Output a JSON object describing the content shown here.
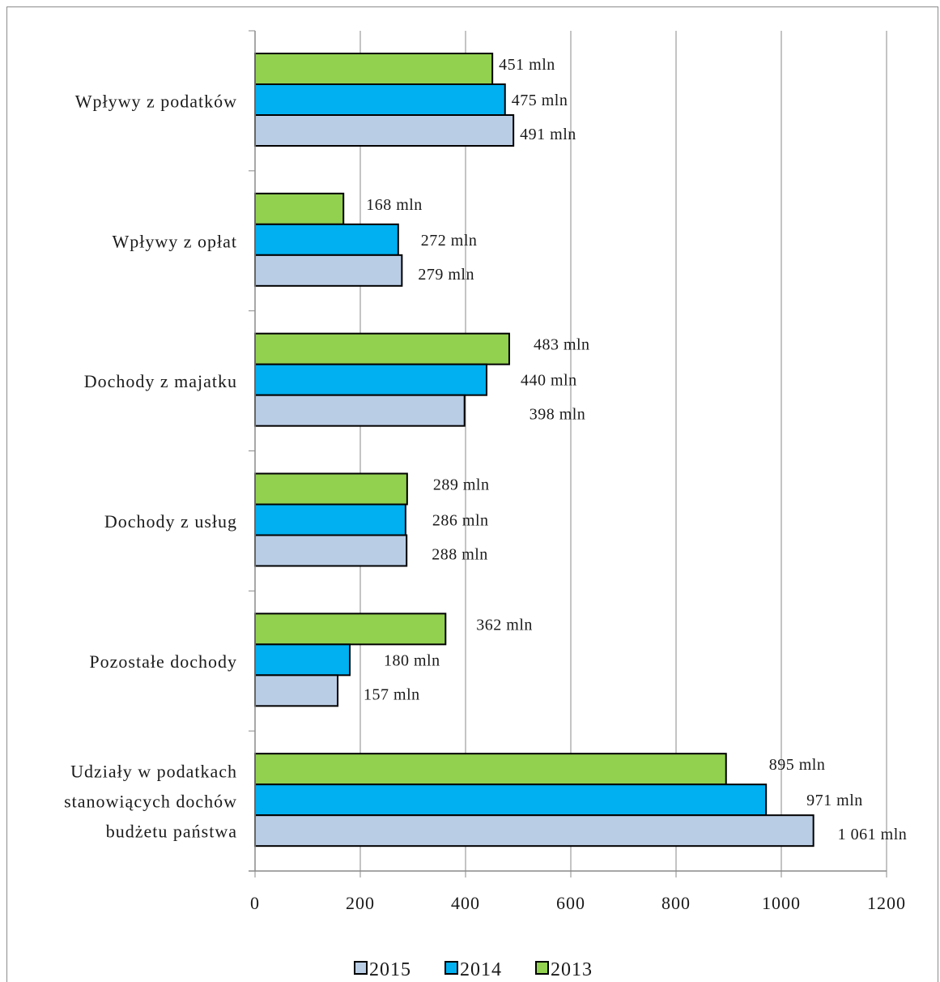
{
  "chart_data": {
    "type": "bar",
    "orientation": "horizontal",
    "categories": [
      [
        "Wpływy z podatków"
      ],
      [
        "Wpływy z opłat"
      ],
      [
        "Dochody z majatku"
      ],
      [
        "Dochody z usług"
      ],
      [
        "Pozostałe dochody"
      ],
      [
        "Udziały w podatkach",
        "stanowiących dochów",
        "budżetu państwa"
      ]
    ],
    "series": [
      {
        "name": "2013",
        "color": "#92d050",
        "values": [
          451,
          168,
          483,
          289,
          362,
          895
        ],
        "labels": [
          "451 mln",
          "168 mln",
          "483 mln",
          "289 mln",
          "362 mln",
          "895 mln"
        ]
      },
      {
        "name": "2014",
        "color": "#00b0f0",
        "values": [
          475,
          272,
          440,
          286,
          180,
          971
        ],
        "labels": [
          "475 mln",
          "272 mln",
          "440 mln",
          "286 mln",
          "180 mln",
          "971 mln"
        ]
      },
      {
        "name": "2015",
        "color": "#b9cde5",
        "values": [
          491,
          279,
          398,
          288,
          157,
          1061
        ],
        "labels": [
          "491 mln",
          "279 mln",
          "398 mln",
          "288 mln",
          "157 mln",
          "1 061 mln"
        ]
      }
    ],
    "xlim": [
      0,
      1200
    ],
    "xticks": [
      0,
      200,
      400,
      600,
      800,
      1000,
      1200
    ],
    "legend_order": [
      "2015",
      "2014",
      "2013"
    ],
    "legend_position": "bottom",
    "grid": "vertical"
  }
}
